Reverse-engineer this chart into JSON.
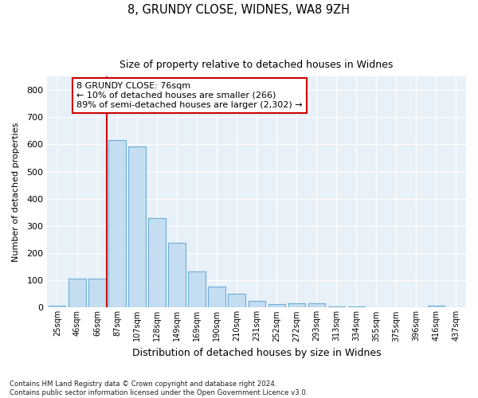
{
  "title1": "8, GRUNDY CLOSE, WIDNES, WA8 9ZH",
  "title2": "Size of property relative to detached houses in Widnes",
  "xlabel": "Distribution of detached houses by size in Widnes",
  "ylabel": "Number of detached properties",
  "categories": [
    "25sqm",
    "46sqm",
    "66sqm",
    "87sqm",
    "107sqm",
    "128sqm",
    "149sqm",
    "169sqm",
    "190sqm",
    "210sqm",
    "231sqm",
    "252sqm",
    "272sqm",
    "293sqm",
    "313sqm",
    "334sqm",
    "355sqm",
    "375sqm",
    "396sqm",
    "416sqm",
    "437sqm"
  ],
  "values": [
    8,
    107,
    107,
    615,
    593,
    328,
    237,
    132,
    78,
    50,
    25,
    12,
    17,
    17,
    4,
    4,
    0,
    0,
    0,
    8,
    0
  ],
  "bar_color": "#c5ddf0",
  "bar_edge_color": "#6aaed6",
  "vline_color": "#cc0000",
  "annotation_text": "8 GRUNDY CLOSE: 76sqm\n← 10% of detached houses are smaller (266)\n89% of semi-detached houses are larger (2,302) →",
  "footnote": "Contains HM Land Registry data © Crown copyright and database right 2024.\nContains public sector information licensed under the Open Government Licence v3.0.",
  "ylim_max": 850,
  "yticks": [
    0,
    100,
    200,
    300,
    400,
    500,
    600,
    700,
    800
  ],
  "background_color": "#e8f0f8",
  "grid_color": "#ffffff"
}
